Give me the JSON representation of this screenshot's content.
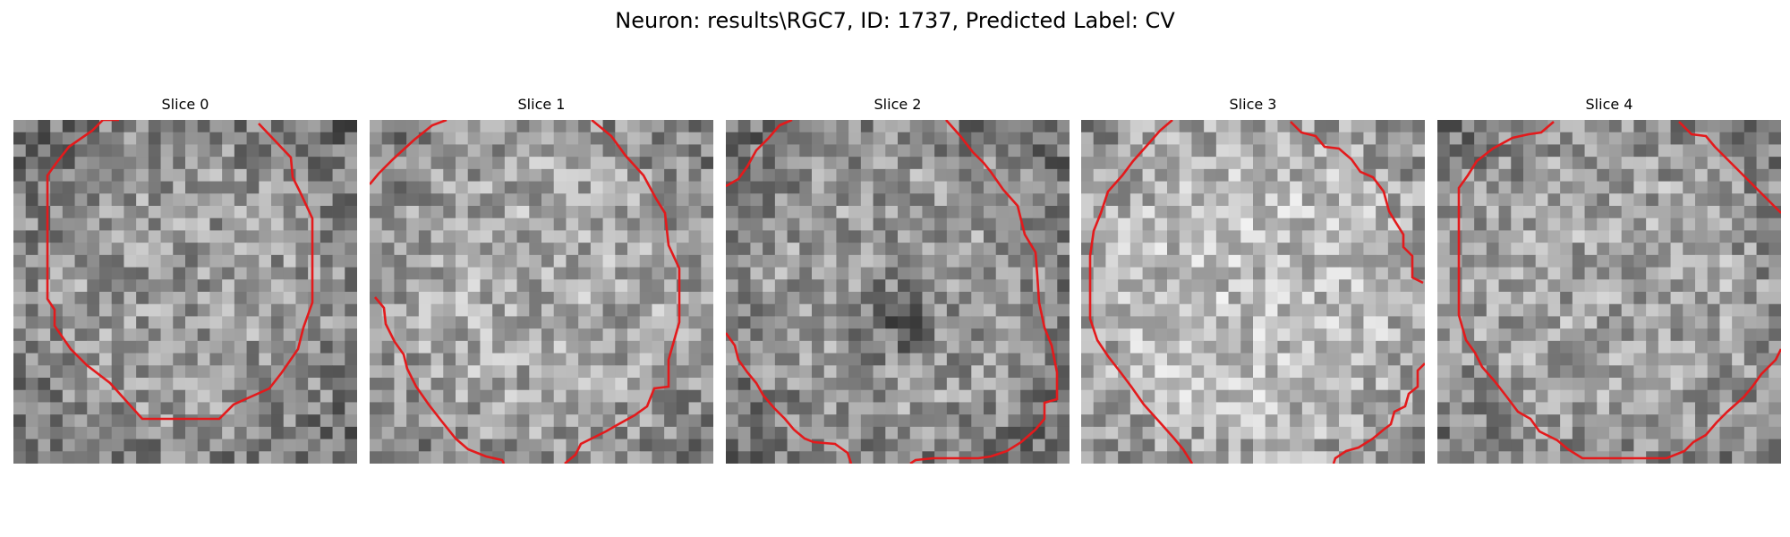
{
  "figure": {
    "title": "Neuron: results\\RGC7, ID: 1737, Predicted Label: CV"
  },
  "contour_color": "#e31a1c",
  "colormap": "gray",
  "grid_size": 28,
  "slices": [
    {
      "title": "Slice 0",
      "brightness": 0.6,
      "center_dark": 0.0
    },
    {
      "title": "Slice 1",
      "brightness": 0.66,
      "center_dark": 0.0
    },
    {
      "title": "Slice 2",
      "brightness": 0.6,
      "center_dark": 0.22
    },
    {
      "title": "Slice 3",
      "brightness": 0.74,
      "center_dark": 0.0
    },
    {
      "title": "Slice 4",
      "brightness": 0.64,
      "center_dark": 0.0
    }
  ]
}
